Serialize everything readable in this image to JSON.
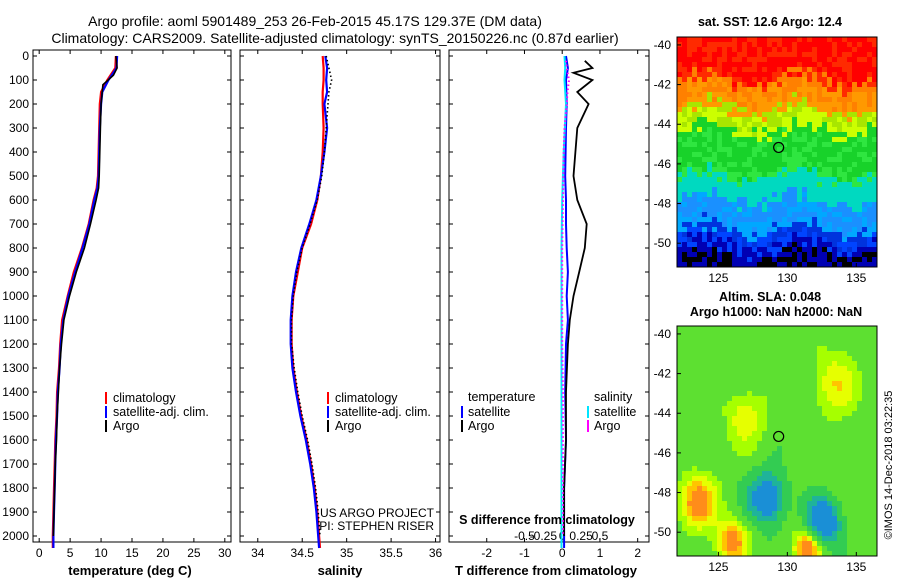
{
  "header": {
    "line1": "Argo profile: aoml 5901489_253 26-Feb-2015 45.17S 129.37E (DM data)",
    "line2": "Climatology: CARS2009. Satellite-adjusted climatology: synTS_20150226.nc (0.87d earlier)"
  },
  "colors": {
    "clim": "#ff0000",
    "sat": "#0000ff",
    "argo": "#000000",
    "sat_sal": "#00e5ff",
    "argo_sal": "#ff00ff"
  },
  "depth_ticks": [
    "0",
    "100",
    "200",
    "300",
    "400",
    "500",
    "600",
    "700",
    "800",
    "900",
    "1000",
    "1100",
    "1200",
    "1300",
    "1400",
    "1500",
    "1600",
    "1700",
    "1800",
    "1900",
    "2000"
  ],
  "chart_data": [
    {
      "type": "line",
      "name": "temperature",
      "xlabel": "temperature (deg C)",
      "ylabel": "depth",
      "xlim": [
        -1,
        31
      ],
      "ylim": [
        2050,
        0
      ],
      "xticks": [
        0,
        5,
        10,
        15,
        20,
        25,
        30
      ],
      "xtick_labels": [
        "0",
        "5",
        "10",
        "15",
        "20",
        "25",
        "30"
      ],
      "legend": {
        "position": "lower-right",
        "items": [
          "climatology",
          "satellite-adj. clim.",
          "Argo"
        ]
      },
      "series": [
        {
          "name": "climatology",
          "color": "#ff0000",
          "points": [
            [
              12.4,
              0
            ],
            [
              12.3,
              50
            ],
            [
              11,
              100
            ],
            [
              10,
              150
            ],
            [
              9.8,
              200
            ],
            [
              9.7,
              300
            ],
            [
              9.6,
              400
            ],
            [
              9.5,
              500
            ],
            [
              9.3,
              550
            ],
            [
              8.8,
              600
            ],
            [
              8,
              700
            ],
            [
              6.9,
              800
            ],
            [
              5.6,
              900
            ],
            [
              4.6,
              1000
            ],
            [
              3.7,
              1100
            ],
            [
              3.4,
              1200
            ],
            [
              3.2,
              1300
            ],
            [
              2.9,
              1400
            ],
            [
              2.8,
              1500
            ],
            [
              2.6,
              1600
            ],
            [
              2.5,
              1700
            ],
            [
              2.4,
              1800
            ],
            [
              2.3,
              1900
            ],
            [
              2.2,
              2000
            ],
            [
              2.2,
              2050
            ]
          ]
        },
        {
          "name": "satellite-adj. clim.",
          "color": "#0000ff",
          "points": [
            [
              12.6,
              0
            ],
            [
              12.5,
              50
            ],
            [
              11.2,
              100
            ],
            [
              10.2,
              150
            ],
            [
              10,
              200
            ],
            [
              9.8,
              300
            ],
            [
              9.7,
              400
            ],
            [
              9.6,
              500
            ],
            [
              9.4,
              550
            ],
            [
              8.9,
              600
            ],
            [
              8.1,
              700
            ],
            [
              7,
              800
            ],
            [
              5.8,
              900
            ],
            [
              4.7,
              1000
            ],
            [
              3.9,
              1100
            ],
            [
              3.5,
              1200
            ],
            [
              3.3,
              1300
            ],
            [
              3,
              1400
            ],
            [
              2.9,
              1500
            ],
            [
              2.7,
              1600
            ],
            [
              2.6,
              1700
            ],
            [
              2.5,
              1800
            ],
            [
              2.4,
              1900
            ],
            [
              2.3,
              2000
            ],
            [
              2.3,
              2050
            ]
          ]
        },
        {
          "name": "Argo",
          "color": "#000000",
          "points": [
            [
              12.4,
              0
            ],
            [
              12.6,
              50
            ],
            [
              12,
              80
            ],
            [
              10.3,
              120
            ],
            [
              10,
              200
            ],
            [
              9.9,
              300
            ],
            [
              9.8,
              400
            ],
            [
              9.7,
              500
            ],
            [
              9.6,
              550
            ],
            [
              9.2,
              600
            ],
            [
              8.3,
              700
            ],
            [
              7.3,
              800
            ],
            [
              6,
              900
            ],
            [
              4.9,
              1000
            ],
            [
              4,
              1100
            ],
            [
              3.6,
              1200
            ],
            [
              3.3,
              1300
            ],
            [
              3.1,
              1400
            ],
            [
              2.9,
              1500
            ],
            [
              2.8,
              1600
            ],
            [
              2.6,
              1700
            ],
            [
              2.5,
              1800
            ],
            [
              2.4,
              1900
            ],
            [
              2.3,
              2000
            ]
          ]
        }
      ]
    },
    {
      "type": "line",
      "name": "salinity",
      "xlabel": "salinity",
      "ylabel": "depth",
      "xlim": [
        33.8,
        36.05
      ],
      "ylim": [
        2050,
        0
      ],
      "xticks": [
        34,
        34.5,
        35,
        35.5,
        36
      ],
      "xtick_labels": [
        "34",
        "34.5",
        "35",
        "35.5",
        "36"
      ],
      "legend": {
        "position": "lower-right",
        "items": [
          "climatology",
          "satellite-adj. clim.",
          "Argo"
        ]
      },
      "annotation": [
        "US ARGO PROJECT",
        "PI: STEPHEN RISER"
      ],
      "series": [
        {
          "name": "climatology",
          "color": "#ff0000",
          "points": [
            [
              34.73,
              0
            ],
            [
              34.74,
              50
            ],
            [
              34.74,
              100
            ],
            [
              34.73,
              150
            ],
            [
              34.73,
              200
            ],
            [
              34.74,
              300
            ],
            [
              34.73,
              400
            ],
            [
              34.71,
              500
            ],
            [
              34.67,
              600
            ],
            [
              34.6,
              700
            ],
            [
              34.5,
              800
            ],
            [
              34.45,
              900
            ],
            [
              34.4,
              1000
            ],
            [
              34.38,
              1100
            ],
            [
              34.38,
              1200
            ],
            [
              34.4,
              1300
            ],
            [
              34.44,
              1400
            ],
            [
              34.49,
              1500
            ],
            [
              34.55,
              1600
            ],
            [
              34.6,
              1700
            ],
            [
              34.64,
              1800
            ],
            [
              34.67,
              1900
            ],
            [
              34.69,
              2000
            ],
            [
              34.7,
              2050
            ]
          ]
        },
        {
          "name": "satellite-adj. clim.",
          "color": "#0000ff",
          "points": [
            [
              34.76,
              0
            ],
            [
              34.78,
              50
            ],
            [
              34.77,
              100
            ],
            [
              34.78,
              150
            ],
            [
              34.75,
              200
            ],
            [
              34.78,
              300
            ],
            [
              34.75,
              400
            ],
            [
              34.71,
              500
            ],
            [
              34.66,
              600
            ],
            [
              34.58,
              700
            ],
            [
              34.49,
              800
            ],
            [
              34.43,
              900
            ],
            [
              34.39,
              1000
            ],
            [
              34.37,
              1100
            ],
            [
              34.37,
              1200
            ],
            [
              34.39,
              1300
            ],
            [
              34.43,
              1400
            ],
            [
              34.48,
              1500
            ],
            [
              34.54,
              1600
            ],
            [
              34.59,
              1700
            ],
            [
              34.63,
              1800
            ],
            [
              34.66,
              1900
            ],
            [
              34.68,
              2000
            ],
            [
              34.69,
              2050
            ]
          ]
        },
        {
          "name": "Argo",
          "color": "#000000",
          "points": [
            [
              34.77,
              0
            ],
            [
              34.8,
              50
            ],
            [
              34.83,
              100
            ],
            [
              34.8,
              150
            ],
            [
              34.79,
              200
            ],
            [
              34.77,
              300
            ],
            [
              34.75,
              400
            ],
            [
              34.72,
              500
            ],
            [
              34.67,
              600
            ],
            [
              34.59,
              700
            ],
            [
              34.5,
              800
            ],
            [
              34.44,
              900
            ],
            [
              34.4,
              1000
            ],
            [
              34.38,
              1100
            ],
            [
              34.38,
              1200
            ],
            [
              34.41,
              1300
            ],
            [
              34.45,
              1400
            ],
            [
              34.5,
              1500
            ],
            [
              34.56,
              1600
            ],
            [
              34.61,
              1700
            ],
            [
              34.65,
              1800
            ],
            [
              34.68,
              1900
            ],
            [
              34.7,
              2000
            ]
          ]
        }
      ]
    },
    {
      "type": "line",
      "name": "difference-from-climatology",
      "xlabel": "T difference from climatology",
      "ylabel": "depth",
      "xlim": [
        -3,
        2.3
      ],
      "ylim": [
        2050,
        0
      ],
      "xticks": [
        -2,
        -1,
        0,
        1,
        2
      ],
      "xtick_labels": [
        "-2",
        "-1",
        "0",
        "1",
        "2"
      ],
      "secondary_axis": {
        "label": "S difference from climatology",
        "tick_labels": [
          "-0.5",
          "-0.25",
          "0",
          "0.25",
          "0.5"
        ]
      },
      "legend": {
        "position": "lower",
        "temperature_title": "temperature",
        "salinity_title": "salinity",
        "items": [
          "satellite",
          "Argo"
        ]
      },
      "series": [
        {
          "name": "T satellite",
          "color": "#0000ff",
          "points": [
            [
              0.1,
              0
            ],
            [
              0.15,
              50
            ],
            [
              0.1,
              100
            ],
            [
              0.12,
              200
            ],
            [
              0.1,
              300
            ],
            [
              0.08,
              500
            ],
            [
              0.1,
              600
            ],
            [
              0.1,
              700
            ],
            [
              0.12,
              800
            ],
            [
              0.15,
              900
            ],
            [
              0.12,
              1000
            ],
            [
              0.15,
              1100
            ],
            [
              0.1,
              1200
            ],
            [
              0.08,
              1400
            ],
            [
              0.1,
              1600
            ],
            [
              0.05,
              1800
            ],
            [
              0.05,
              2000
            ],
            [
              0.05,
              2050
            ]
          ]
        },
        {
          "name": "T Argo",
          "color": "#000000",
          "points": [
            [
              0.6,
              20
            ],
            [
              0.8,
              50
            ],
            [
              0.3,
              70
            ],
            [
              0.8,
              100
            ],
            [
              0.4,
              150
            ],
            [
              0.7,
              200
            ],
            [
              0.4,
              300
            ],
            [
              0.35,
              400
            ],
            [
              0.3,
              500
            ],
            [
              0.4,
              600
            ],
            [
              0.65,
              700
            ],
            [
              0.6,
              800
            ],
            [
              0.45,
              900
            ],
            [
              0.3,
              1000
            ],
            [
              0.2,
              1100
            ],
            [
              0.15,
              1200
            ],
            [
              0.1,
              1400
            ],
            [
              0.1,
              1600
            ],
            [
              0.05,
              1800
            ],
            [
              0.05,
              2000
            ]
          ]
        },
        {
          "name": "S satellite",
          "color": "#00e5ff",
          "points": [
            [
              0.03,
              0
            ],
            [
              0.04,
              50
            ],
            [
              0.03,
              100
            ],
            [
              0.05,
              200
            ],
            [
              0.02,
              400
            ],
            [
              0.0,
              600
            ],
            [
              -0.01,
              800
            ],
            [
              -0.01,
              1000
            ],
            [
              -0.01,
              1200
            ],
            [
              -0.01,
              1400
            ],
            [
              -0.01,
              1600
            ],
            [
              -0.01,
              1800
            ],
            [
              -0.01,
              2050
            ]
          ]
        },
        {
          "name": "S Argo",
          "color": "#ff00ff",
          "points": [
            [
              0.05,
              20
            ],
            [
              0.06,
              50
            ],
            [
              0.09,
              100
            ],
            [
              0.07,
              150
            ],
            [
              0.06,
              200
            ],
            [
              0.03,
              300
            ],
            [
              0.02,
              400
            ],
            [
              0.01,
              600
            ],
            [
              0.0,
              800
            ],
            [
              0.0,
              1000
            ],
            [
              0.0,
              1200
            ],
            [
              0.01,
              1400
            ],
            [
              0.01,
              1600
            ],
            [
              0.01,
              1800
            ],
            [
              0.01,
              2000
            ]
          ]
        }
      ]
    },
    {
      "type": "heatmap",
      "name": "sst-map",
      "title": "sat. SST: 12.6 Argo: 12.4",
      "xlim": [
        122,
        136.5
      ],
      "ylim": [
        -51.2,
        -39.6
      ],
      "xticks": [
        125,
        130,
        135
      ],
      "xtick_labels": [
        "125",
        "130",
        "135"
      ],
      "yticks": [
        -40,
        -42,
        -44,
        -46,
        -48,
        -50
      ],
      "ytick_labels": [
        "-40",
        "-42",
        "-44",
        "-46",
        "-48",
        "-50"
      ],
      "float_position": {
        "lon": 129.37,
        "lat": -45.17
      }
    },
    {
      "type": "heatmap",
      "name": "sla-map",
      "title_line1": "Altim. SLA: 0.048",
      "title_line2": "Argo h1000: NaN h2000: NaN",
      "xlim": [
        122,
        136.5
      ],
      "ylim": [
        -51.2,
        -39.6
      ],
      "xticks": [
        125,
        130,
        135
      ],
      "xtick_labels": [
        "125",
        "130",
        "135"
      ],
      "yticks": [
        -40,
        -42,
        -44,
        -46,
        -48,
        -50
      ],
      "ytick_labels": [
        "-40",
        "-42",
        "-44",
        "-46",
        "-48",
        "-50"
      ],
      "float_position": {
        "lon": 129.37,
        "lat": -45.17
      }
    }
  ],
  "footer": {
    "copyright": "©IMOS 14-Dec-2018 03:22:35"
  }
}
